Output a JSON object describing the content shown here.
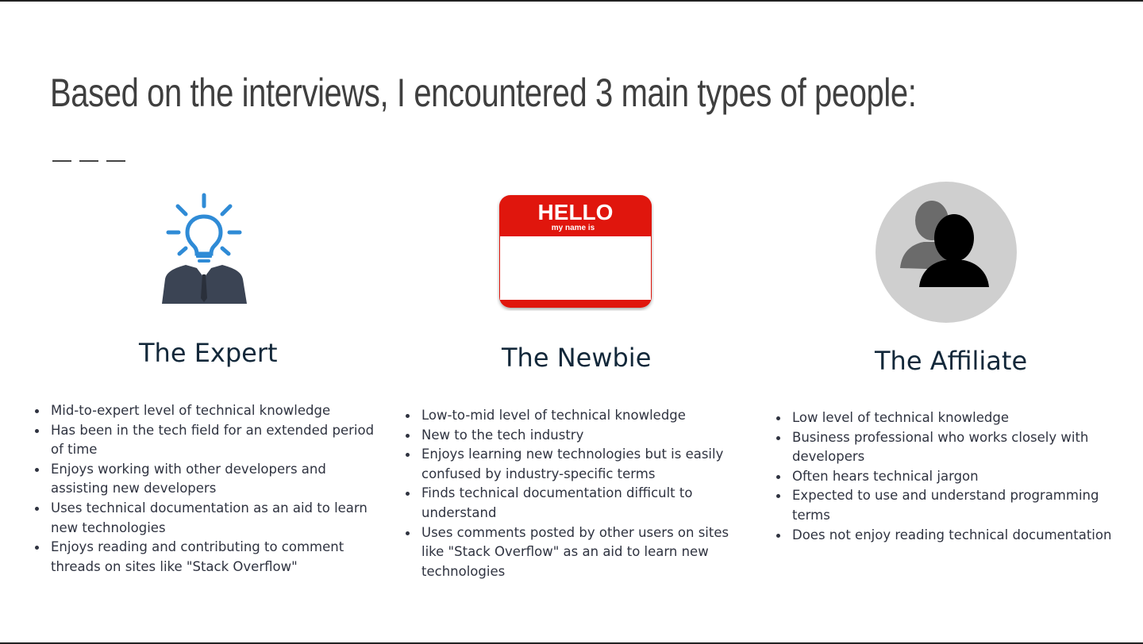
{
  "slide": {
    "title": "Based on the interviews, I encountered 3 main types of people:"
  },
  "personas": [
    {
      "name": "The Expert",
      "icon": "lightbulb-businessman-icon",
      "traits": [
        "Mid-to-expert level of technical knowledge",
        "Has been in the tech field for an extended period of time",
        "Enjoys working with other developers and assisting new developers",
        "Uses technical documentation as an aid to learn new technologies",
        "Enjoys reading and contributing to comment threads on sites like \"Stack Overflow\""
      ]
    },
    {
      "name": "The Newbie",
      "icon": "hello-name-tag-icon",
      "badge": {
        "hello": "HELLO",
        "sub": "my name is"
      },
      "traits": [
        "Low-to-mid level of technical knowledge",
        "New to the tech industry",
        "Enjoys learning new technologies but is easily confused by industry-specific terms",
        "Finds technical documentation difficult to understand",
        "Uses comments posted by other users on sites like \"Stack Overflow\" as an aid to learn new technologies"
      ]
    },
    {
      "name": "The Affiliate",
      "icon": "users-silhouette-icon",
      "traits": [
        "Low level of technical knowledge",
        "Business professional who works closely with developers",
        "Often hears technical jargon",
        "Expected to use and understand programming terms",
        "Does not enjoy reading technical documentation"
      ]
    }
  ],
  "colors": {
    "title": "#3f3f3f",
    "persona_name": "#13283a",
    "body_text": "#2f3340",
    "bulb_blue": "#2f8bd6",
    "suit": "#3b4454",
    "name_tag_red": "#e0140f",
    "affiliate_circle": "#cfcfcf"
  }
}
